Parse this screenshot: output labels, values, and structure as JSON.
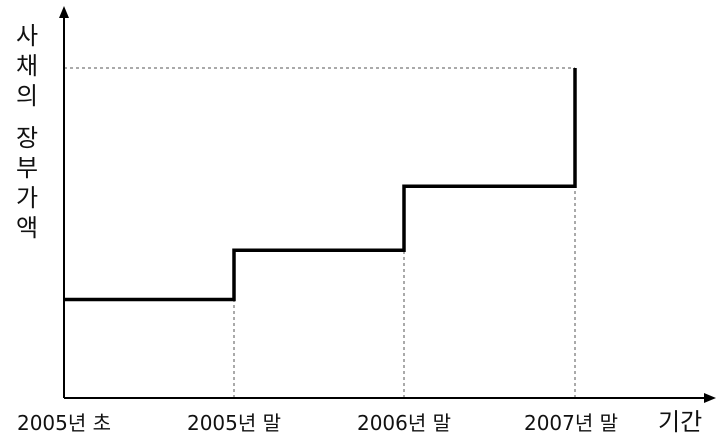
{
  "chart_data": {
    "type": "line",
    "step": true,
    "xlabel": "기간",
    "ylabel": "사채의 장부가액",
    "x": [
      "2005년 초",
      "2005년 말",
      "2006년 말",
      "2007년 말"
    ],
    "y": [
      1,
      1.5,
      2.15,
      3.35
    ],
    "ylim": [
      0,
      3.35
    ],
    "grid": false,
    "guides": "dashed",
    "colors": {
      "line": "#000000",
      "guide": "#555555",
      "axis": "#000000"
    }
  }
}
